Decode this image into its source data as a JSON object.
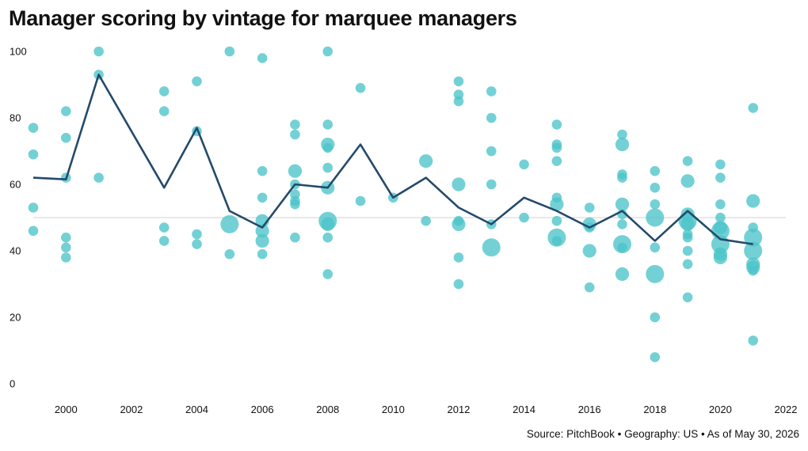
{
  "chart_data": {
    "type": "scatter",
    "title": "Manager scoring by vintage for marquee managers",
    "source": "Source: PitchBook • Geography: US • As of May 30, 2026",
    "xlabel": "",
    "ylabel": "",
    "xlim": [
      1999,
      2022
    ],
    "ylim": [
      0,
      100
    ],
    "x_ticks": [
      2000,
      2002,
      2004,
      2006,
      2008,
      2010,
      2012,
      2014,
      2016,
      2018,
      2020,
      2022
    ],
    "y_ticks": [
      0,
      20,
      40,
      60,
      80,
      100
    ],
    "reference_line": 50,
    "grid": false,
    "colors": {
      "points": "#4cc4c9",
      "line": "#244a6b",
      "reference": "#d9d9d9"
    },
    "series": [
      {
        "type": "scatter",
        "points": [
          {
            "x": 1999,
            "y": 77,
            "size": 1
          },
          {
            "x": 1999,
            "y": 69,
            "size": 1
          },
          {
            "x": 1999,
            "y": 53,
            "size": 1
          },
          {
            "x": 1999,
            "y": 46,
            "size": 1
          },
          {
            "x": 2000,
            "y": 82,
            "size": 1
          },
          {
            "x": 2000,
            "y": 74,
            "size": 1
          },
          {
            "x": 2000,
            "y": 62,
            "size": 1
          },
          {
            "x": 2000,
            "y": 44,
            "size": 1
          },
          {
            "x": 2000,
            "y": 41,
            "size": 1
          },
          {
            "x": 2000,
            "y": 38,
            "size": 1
          },
          {
            "x": 2001,
            "y": 100,
            "size": 1
          },
          {
            "x": 2001,
            "y": 93,
            "size": 1
          },
          {
            "x": 2001,
            "y": 62,
            "size": 1
          },
          {
            "x": 2003,
            "y": 88,
            "size": 1
          },
          {
            "x": 2003,
            "y": 82,
            "size": 1
          },
          {
            "x": 2003,
            "y": 47,
            "size": 1
          },
          {
            "x": 2003,
            "y": 43,
            "size": 1
          },
          {
            "x": 2004,
            "y": 91,
            "size": 1
          },
          {
            "x": 2004,
            "y": 76,
            "size": 1
          },
          {
            "x": 2004,
            "y": 45,
            "size": 1
          },
          {
            "x": 2004,
            "y": 42,
            "size": 1
          },
          {
            "x": 2005,
            "y": 100,
            "size": 1
          },
          {
            "x": 2005,
            "y": 48,
            "size": 3
          },
          {
            "x": 2005,
            "y": 39,
            "size": 1
          },
          {
            "x": 2006,
            "y": 98,
            "size": 1
          },
          {
            "x": 2006,
            "y": 64,
            "size": 1
          },
          {
            "x": 2006,
            "y": 56,
            "size": 1
          },
          {
            "x": 2006,
            "y": 49,
            "size": 2
          },
          {
            "x": 2006,
            "y": 46,
            "size": 2
          },
          {
            "x": 2006,
            "y": 43,
            "size": 2
          },
          {
            "x": 2006,
            "y": 39,
            "size": 1
          },
          {
            "x": 2007,
            "y": 78,
            "size": 1
          },
          {
            "x": 2007,
            "y": 75,
            "size": 1
          },
          {
            "x": 2007,
            "y": 64,
            "size": 2
          },
          {
            "x": 2007,
            "y": 60,
            "size": 1
          },
          {
            "x": 2007,
            "y": 57,
            "size": 1
          },
          {
            "x": 2007,
            "y": 55,
            "size": 1
          },
          {
            "x": 2007,
            "y": 54,
            "size": 1
          },
          {
            "x": 2007,
            "y": 44,
            "size": 1
          },
          {
            "x": 2008,
            "y": 100,
            "size": 1
          },
          {
            "x": 2008,
            "y": 78,
            "size": 1
          },
          {
            "x": 2008,
            "y": 72,
            "size": 2
          },
          {
            "x": 2008,
            "y": 71,
            "size": 1
          },
          {
            "x": 2008,
            "y": 65,
            "size": 1
          },
          {
            "x": 2008,
            "y": 59,
            "size": 2
          },
          {
            "x": 2008,
            "y": 49,
            "size": 3
          },
          {
            "x": 2008,
            "y": 48,
            "size": 2
          },
          {
            "x": 2008,
            "y": 44,
            "size": 1
          },
          {
            "x": 2008,
            "y": 33,
            "size": 1
          },
          {
            "x": 2009,
            "y": 89,
            "size": 1
          },
          {
            "x": 2009,
            "y": 55,
            "size": 1
          },
          {
            "x": 2010,
            "y": 56,
            "size": 1
          },
          {
            "x": 2011,
            "y": 67,
            "size": 2
          },
          {
            "x": 2011,
            "y": 49,
            "size": 1
          },
          {
            "x": 2012,
            "y": 91,
            "size": 1
          },
          {
            "x": 2012,
            "y": 87,
            "size": 1
          },
          {
            "x": 2012,
            "y": 85,
            "size": 1
          },
          {
            "x": 2012,
            "y": 60,
            "size": 2
          },
          {
            "x": 2012,
            "y": 49,
            "size": 1
          },
          {
            "x": 2012,
            "y": 48,
            "size": 2
          },
          {
            "x": 2012,
            "y": 38,
            "size": 1
          },
          {
            "x": 2012,
            "y": 30,
            "size": 1
          },
          {
            "x": 2013,
            "y": 88,
            "size": 1
          },
          {
            "x": 2013,
            "y": 80,
            "size": 1
          },
          {
            "x": 2013,
            "y": 70,
            "size": 1
          },
          {
            "x": 2013,
            "y": 60,
            "size": 1
          },
          {
            "x": 2013,
            "y": 48,
            "size": 1
          },
          {
            "x": 2013,
            "y": 41,
            "size": 3
          },
          {
            "x": 2014,
            "y": 66,
            "size": 1
          },
          {
            "x": 2014,
            "y": 50,
            "size": 1
          },
          {
            "x": 2015,
            "y": 78,
            "size": 1
          },
          {
            "x": 2015,
            "y": 72,
            "size": 1
          },
          {
            "x": 2015,
            "y": 71,
            "size": 1
          },
          {
            "x": 2015,
            "y": 67,
            "size": 1
          },
          {
            "x": 2015,
            "y": 56,
            "size": 1
          },
          {
            "x": 2015,
            "y": 54,
            "size": 2
          },
          {
            "x": 2015,
            "y": 49,
            "size": 1
          },
          {
            "x": 2015,
            "y": 44,
            "size": 3
          },
          {
            "x": 2015,
            "y": 43,
            "size": 1
          },
          {
            "x": 2016,
            "y": 53,
            "size": 1
          },
          {
            "x": 2016,
            "y": 48,
            "size": 2
          },
          {
            "x": 2016,
            "y": 47,
            "size": 1
          },
          {
            "x": 2016,
            "y": 40,
            "size": 2
          },
          {
            "x": 2016,
            "y": 29,
            "size": 1
          },
          {
            "x": 2017,
            "y": 75,
            "size": 1
          },
          {
            "x": 2017,
            "y": 72,
            "size": 2
          },
          {
            "x": 2017,
            "y": 63,
            "size": 1
          },
          {
            "x": 2017,
            "y": 62,
            "size": 1
          },
          {
            "x": 2017,
            "y": 54,
            "size": 2
          },
          {
            "x": 2017,
            "y": 51,
            "size": 1
          },
          {
            "x": 2017,
            "y": 48,
            "size": 1
          },
          {
            "x": 2017,
            "y": 42,
            "size": 3
          },
          {
            "x": 2017,
            "y": 41,
            "size": 1
          },
          {
            "x": 2017,
            "y": 33,
            "size": 2
          },
          {
            "x": 2018,
            "y": 64,
            "size": 1
          },
          {
            "x": 2018,
            "y": 59,
            "size": 1
          },
          {
            "x": 2018,
            "y": 54,
            "size": 1
          },
          {
            "x": 2018,
            "y": 50,
            "size": 3
          },
          {
            "x": 2018,
            "y": 41,
            "size": 1
          },
          {
            "x": 2018,
            "y": 33,
            "size": 3
          },
          {
            "x": 2018,
            "y": 20,
            "size": 1
          },
          {
            "x": 2018,
            "y": 8,
            "size": 1
          },
          {
            "x": 2019,
            "y": 67,
            "size": 1
          },
          {
            "x": 2019,
            "y": 61,
            "size": 2
          },
          {
            "x": 2019,
            "y": 51,
            "size": 2
          },
          {
            "x": 2019,
            "y": 49,
            "size": 3
          },
          {
            "x": 2019,
            "y": 48,
            "size": 2
          },
          {
            "x": 2019,
            "y": 45,
            "size": 1
          },
          {
            "x": 2019,
            "y": 44,
            "size": 1
          },
          {
            "x": 2019,
            "y": 40,
            "size": 1
          },
          {
            "x": 2019,
            "y": 36,
            "size": 1
          },
          {
            "x": 2019,
            "y": 26,
            "size": 1
          },
          {
            "x": 2020,
            "y": 66,
            "size": 1
          },
          {
            "x": 2020,
            "y": 62,
            "size": 1
          },
          {
            "x": 2020,
            "y": 54,
            "size": 1
          },
          {
            "x": 2020,
            "y": 50,
            "size": 1
          },
          {
            "x": 2020,
            "y": 47,
            "size": 2
          },
          {
            "x": 2020,
            "y": 46,
            "size": 3
          },
          {
            "x": 2020,
            "y": 42,
            "size": 3
          },
          {
            "x": 2020,
            "y": 39,
            "size": 2
          },
          {
            "x": 2020,
            "y": 38,
            "size": 2
          },
          {
            "x": 2021,
            "y": 83,
            "size": 1
          },
          {
            "x": 2021,
            "y": 55,
            "size": 2
          },
          {
            "x": 2021,
            "y": 47,
            "size": 1
          },
          {
            "x": 2021,
            "y": 44,
            "size": 3
          },
          {
            "x": 2021,
            "y": 40,
            "size": 3
          },
          {
            "x": 2021,
            "y": 36,
            "size": 2
          },
          {
            "x": 2021,
            "y": 35,
            "size": 2
          },
          {
            "x": 2021,
            "y": 34,
            "size": 1
          },
          {
            "x": 2021,
            "y": 13,
            "size": 1
          }
        ]
      },
      {
        "type": "line",
        "x": [
          1999,
          2000,
          2001,
          2003,
          2004,
          2005,
          2006,
          2007,
          2008,
          2009,
          2010,
          2011,
          2012,
          2013,
          2014,
          2015,
          2016,
          2017,
          2018,
          2019,
          2020,
          2021
        ],
        "values": [
          62,
          61.5,
          93,
          59,
          77,
          52,
          47,
          60,
          59,
          72,
          56,
          62,
          53,
          48,
          56,
          52,
          47,
          52,
          43,
          52,
          43.5,
          42
        ]
      }
    ]
  }
}
